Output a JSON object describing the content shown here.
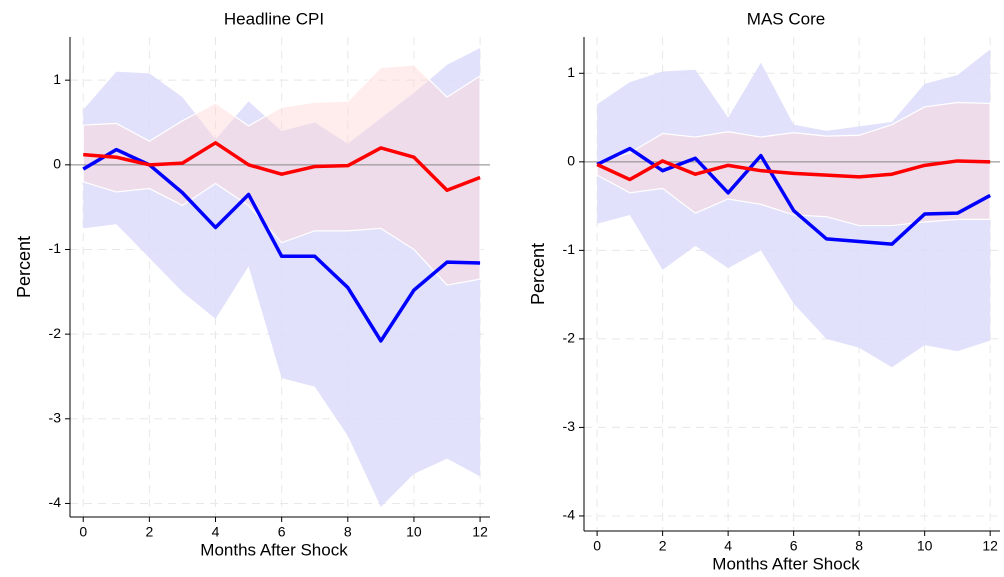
{
  "chart_data": [
    {
      "type": "line",
      "title": "Headline CPI",
      "x_label": "Months After Shock",
      "y_label": "Percent",
      "x": [
        0,
        1,
        2,
        3,
        4,
        5,
        6,
        7,
        8,
        9,
        10,
        11,
        12
      ],
      "xlim": [
        -0.4,
        12.3
      ],
      "xticks": [
        0,
        2,
        4,
        6,
        8,
        10,
        12
      ],
      "ylim": [
        -4.16,
        1.51
      ],
      "yticks": [
        -4,
        -3,
        -2,
        -1,
        0,
        1
      ],
      "grid": true,
      "zero_line": true,
      "bands": [
        {
          "color": "#dcdcfa",
          "upper": [
            0.65,
            1.1,
            1.08,
            0.8,
            0.3,
            0.75,
            0.4,
            0.5,
            0.25,
            0.55,
            0.85,
            1.18,
            1.38
          ],
          "lower": [
            -0.75,
            -0.7,
            -1.1,
            -1.5,
            -1.82,
            -1.2,
            -2.52,
            -2.62,
            -3.2,
            -4.04,
            -3.65,
            -3.47,
            -3.68
          ]
        },
        {
          "color": "#ffd6d6",
          "upper": [
            0.47,
            0.49,
            0.28,
            0.52,
            0.73,
            0.46,
            0.68,
            0.74,
            0.75,
            1.15,
            1.18,
            0.8,
            1.05
          ],
          "lower": [
            -0.2,
            -0.32,
            -0.28,
            -0.48,
            -0.22,
            -0.48,
            -0.92,
            -0.78,
            -0.78,
            -0.75,
            -1.0,
            -1.42,
            -1.35
          ]
        }
      ],
      "series": [
        {
          "color": "#0000ff",
          "values": [
            -0.05,
            0.18,
            0.0,
            -0.33,
            -0.74,
            -0.35,
            -1.08,
            -1.08,
            -1.45,
            -2.08,
            -1.48,
            -1.15,
            -1.16
          ]
        },
        {
          "color": "#ff0000",
          "values": [
            0.12,
            0.09,
            0.0,
            0.02,
            0.26,
            0.0,
            -0.11,
            -0.02,
            -0.01,
            0.2,
            0.09,
            -0.3,
            -0.15
          ]
        }
      ]
    },
    {
      "type": "line",
      "title": "MAS Core",
      "x_label": "Months After Shock",
      "y_label": "Percent",
      "x": [
        0,
        1,
        2,
        3,
        4,
        5,
        6,
        7,
        8,
        9,
        10,
        11,
        12
      ],
      "xlim": [
        -0.4,
        12.3
      ],
      "xticks": [
        0,
        2,
        4,
        6,
        8,
        10,
        12
      ],
      "ylim": [
        -4.17,
        1.41
      ],
      "yticks": [
        -4,
        -3,
        -2,
        -1,
        0,
        1
      ],
      "grid": true,
      "zero_line": true,
      "bands": [
        {
          "color": "#dcdcfa",
          "upper": [
            0.65,
            0.9,
            1.02,
            1.04,
            0.5,
            1.12,
            0.42,
            0.35,
            0.4,
            0.45,
            0.88,
            0.98,
            1.27
          ],
          "lower": [
            -0.7,
            -0.6,
            -1.22,
            -0.95,
            -1.2,
            -1.0,
            -1.6,
            -2.0,
            -2.1,
            -2.32,
            -2.07,
            -2.14,
            -2.02
          ]
        },
        {
          "color": "#ffd6d6",
          "upper": [
            0.0,
            0.1,
            0.32,
            0.28,
            0.34,
            0.28,
            0.33,
            0.29,
            0.3,
            0.42,
            0.62,
            0.67,
            0.66
          ],
          "lower": [
            -0.15,
            -0.35,
            -0.3,
            -0.58,
            -0.42,
            -0.48,
            -0.6,
            -0.62,
            -0.72,
            -0.72,
            -0.68,
            -0.65,
            -0.65
          ]
        }
      ],
      "series": [
        {
          "color": "#0000ff",
          "values": [
            -0.03,
            0.15,
            -0.1,
            0.04,
            -0.35,
            0.07,
            -0.55,
            -0.87,
            -0.9,
            -0.93,
            -0.59,
            -0.58,
            -0.38
          ]
        },
        {
          "color": "#ff0000",
          "values": [
            -0.03,
            -0.2,
            0.01,
            -0.14,
            -0.04,
            -0.1,
            -0.13,
            -0.15,
            -0.17,
            -0.14,
            -0.04,
            0.01,
            0.0
          ]
        }
      ]
    }
  ]
}
